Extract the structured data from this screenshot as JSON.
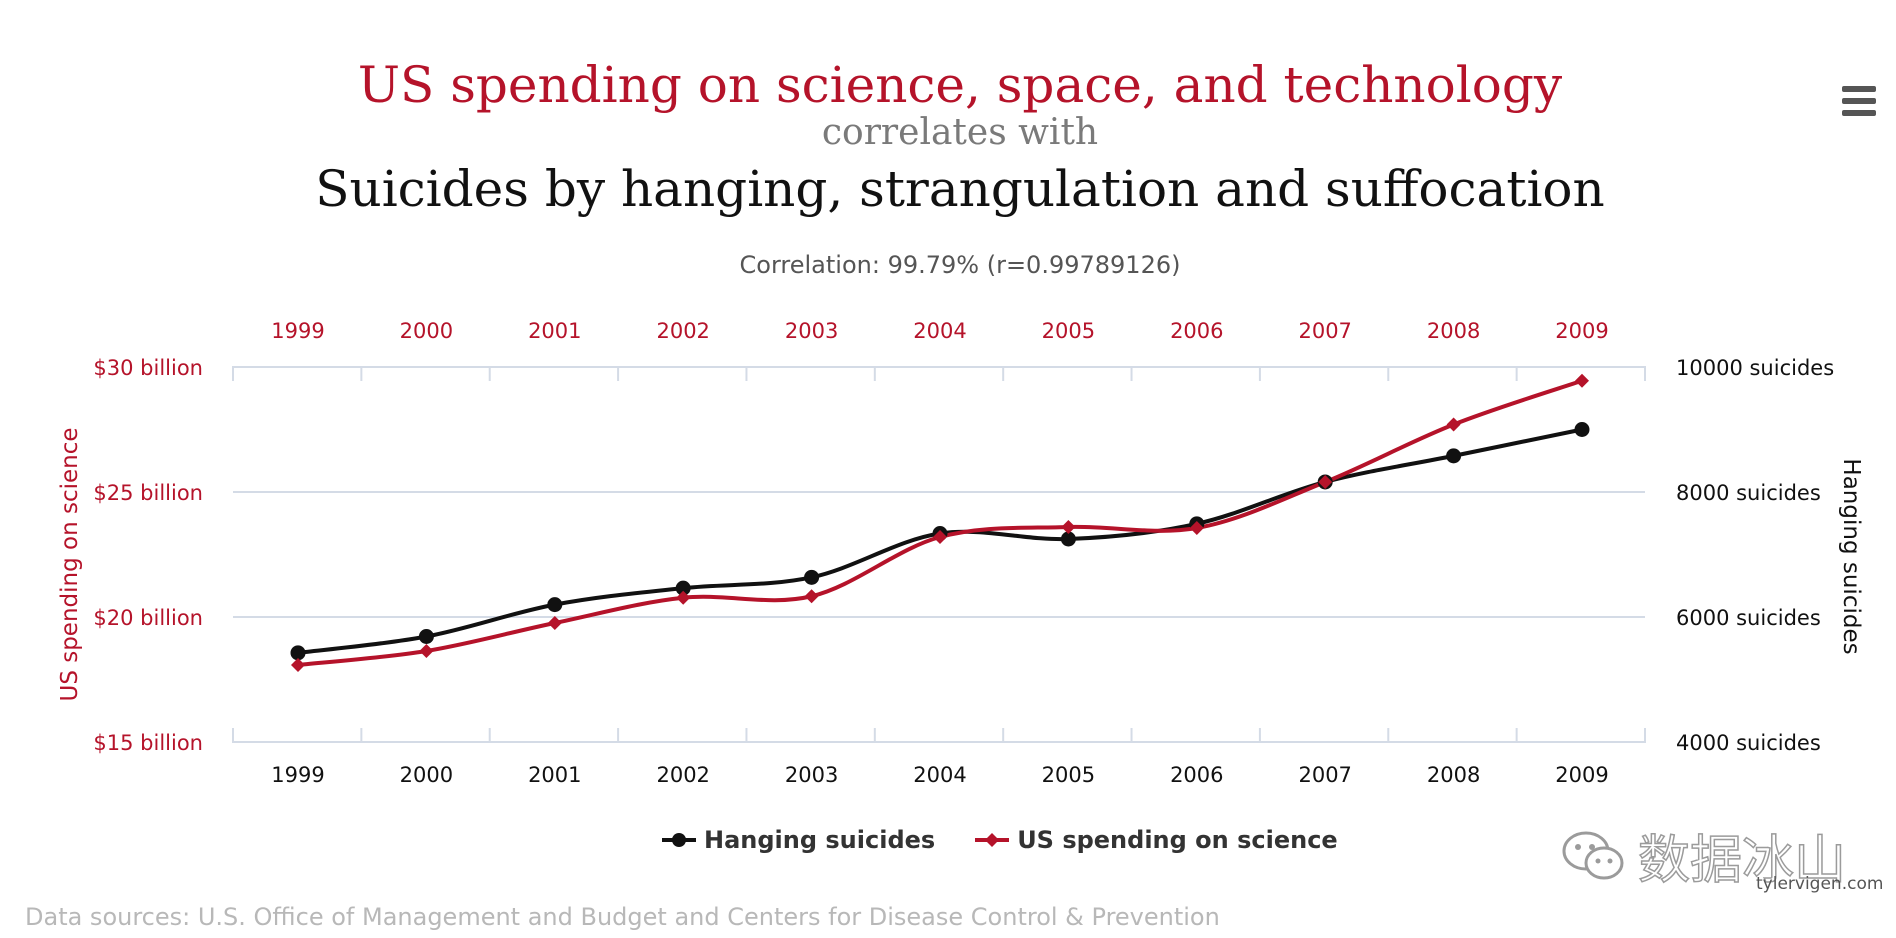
{
  "header": {
    "title": "US spending on science, space, and technology",
    "connector": "correlates with",
    "subtitle": "Suicides by hanging, strangulation and suffocation",
    "correlation": "Correlation: 99.79% (r=0.99789126)",
    "menu_icon": "hamburger-menu-icon"
  },
  "colors": {
    "science": "#b5132a",
    "hanging": "#111111",
    "grid": "#d4dbe6"
  },
  "chart_data": {
    "type": "line",
    "x": [
      1999,
      2000,
      2001,
      2002,
      2003,
      2004,
      2005,
      2006,
      2007,
      2008,
      2009
    ],
    "x_tick_labels": [
      "1999",
      "2000",
      "2001",
      "2002",
      "2003",
      "2004",
      "2005",
      "2006",
      "2007",
      "2008",
      "2009"
    ],
    "left_axis": {
      "label": "US spending on science",
      "range": [
        15,
        30
      ],
      "ticks": [
        15,
        20,
        25,
        30
      ],
      "tick_labels": [
        "$15 billion",
        "$20 billion",
        "$25 billion",
        "$30 billion"
      ]
    },
    "right_axis": {
      "label": "Hanging suicides",
      "range": [
        4000,
        10000
      ],
      "ticks": [
        4000,
        6000,
        8000,
        10000
      ],
      "tick_labels": [
        "4000 suicides",
        "6000 suicides",
        "8000 suicides",
        "10000 suicides"
      ]
    },
    "grid": true,
    "legend_position": "bottom",
    "series": [
      {
        "name": "Hanging suicides",
        "axis": "right",
        "marker": "circle",
        "color": "#111111",
        "values": [
          5427,
          5688,
          6198,
          6462,
          6635,
          7336,
          7248,
          7491,
          8161,
          8578,
          9000
        ]
      },
      {
        "name": "US spending on science",
        "axis": "left",
        "marker": "diamond",
        "color": "#b5132a",
        "values": [
          18.08,
          18.64,
          19.76,
          20.77,
          20.83,
          23.2,
          23.6,
          23.56,
          25.4,
          27.7,
          29.45
        ]
      }
    ]
  },
  "footer": {
    "source": "Data sources: U.S. Office of Management and Budget and Centers for Disease Control & Prevention",
    "credit": "tylervigen.com",
    "watermark_text": "数据冰山"
  }
}
